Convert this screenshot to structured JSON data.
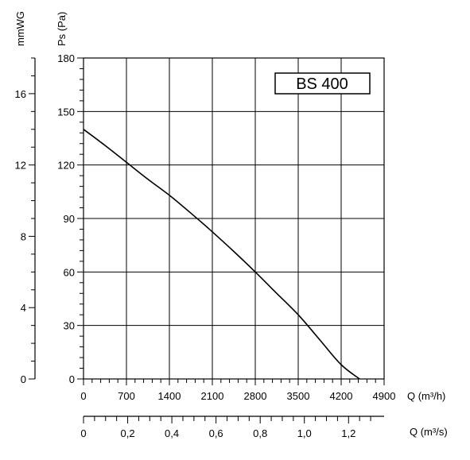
{
  "chart_data": {
    "type": "line",
    "model_label": "BS 400",
    "left_axis_label": "mmWG",
    "y_axis_label": "Ps (Pa)",
    "x_axis_label": "Q (m³/h)",
    "x2_axis_label": "Q (m³/s)",
    "y_ticks": [
      "0",
      "30",
      "60",
      "90",
      "120",
      "150",
      "180"
    ],
    "mmwg_ticks": [
      "0",
      "4",
      "8",
      "12",
      "16"
    ],
    "x_ticks": [
      "0",
      "700",
      "1400",
      "2100",
      "2800",
      "3500",
      "4200",
      "4900"
    ],
    "x2_ticks": [
      "0",
      "0,2",
      "0,4",
      "0,6",
      "0,8",
      "1,0",
      "1,2"
    ],
    "xlim": [
      0,
      4900
    ],
    "ylim": [
      0,
      180
    ],
    "mmwg_lim": [
      0,
      18
    ],
    "x2_lim": [
      0,
      1.361
    ],
    "grid": true,
    "series": [
      {
        "x": [
          0,
          350,
          700,
          1050,
          1400,
          1750,
          2100,
          2450,
          2800,
          3150,
          3500,
          3850,
          4200,
          4500
        ],
        "y": [
          140,
          131,
          121.5,
          112,
          103,
          93,
          82.5,
          71.5,
          60,
          48,
          36,
          22,
          8,
          0
        ]
      }
    ]
  }
}
